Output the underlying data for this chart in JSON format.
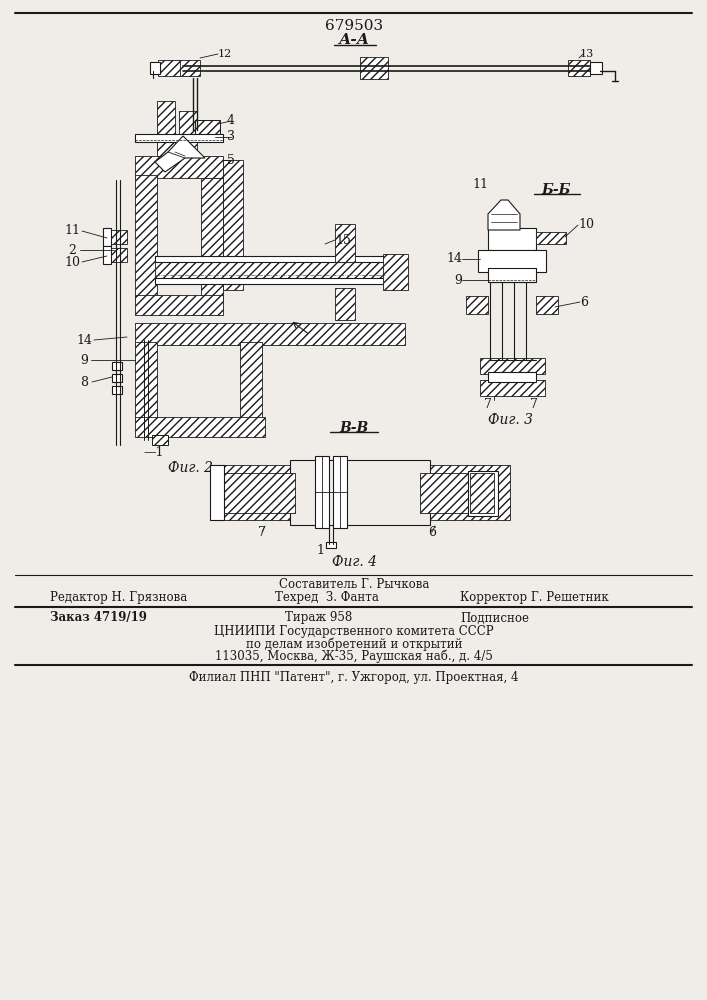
{
  "patent_number": "679503",
  "section_aa": "А-А",
  "section_bb": "Б-Б",
  "section_vv": "В-В",
  "fig2": "Фиг. 2",
  "fig3": "Фиг. 3",
  "fig4": "Фиг. 4",
  "composer": "Составитель Г. Рычкова",
  "editor": "Редактор Н. Грязнова",
  "techred": "Техред  З. Фанта",
  "corrector": "Корректор Г. Решетник",
  "order": "Заказ 4719/19",
  "tirazh": "Тираж 958",
  "podpisnoe": "Подписное",
  "org1": "ЦНИИПИ Государственного комитета СССР",
  "org2": "по делам изобретений и открытий",
  "org3": "113035, Москва, Ж-35, Раушская наб., д. 4/5",
  "org4": "Филиал ПНП \"Патент\", г. Ужгород, ул. Проектная, 4",
  "bg": "#f0ede8",
  "lc": "#1a1a1a",
  "hc": "#555555"
}
